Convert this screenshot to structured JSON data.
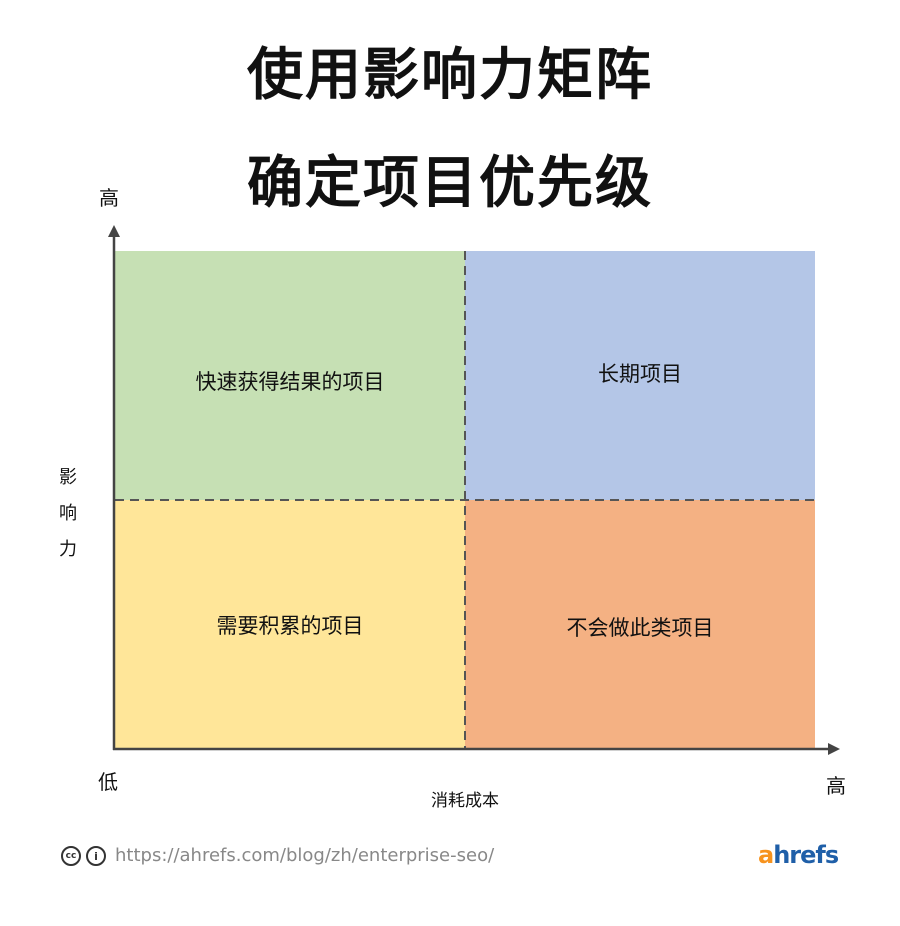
{
  "title": {
    "line1": "使用影响力矩阵",
    "line2": "确定项目优先级"
  },
  "axes": {
    "y_label": [
      "影",
      "响",
      "力"
    ],
    "y_high": "高",
    "x_low": "低",
    "x_high": "高",
    "x_label": "消耗成本"
  },
  "quadrants": [
    {
      "label": "快速获得结果的项目",
      "color": "#c6e0b4"
    },
    {
      "label": "长期项目",
      "color": "#b4c6e7"
    },
    {
      "label": "需要积累的项目",
      "color": "#ffe699"
    },
    {
      "label": "不会做此类项目",
      "color": "#f4b183"
    }
  ],
  "footer": {
    "license_icons": [
      "cc-icon",
      "attribution-icon"
    ],
    "cc_text": "cc",
    "url": "https://ahrefs.com/blog/zh/enterprise-seo/",
    "logo": {
      "a": "a",
      "rest": "hrefs",
      "a_color": "#f7931e",
      "rest_color": "#1f5fa8"
    }
  }
}
